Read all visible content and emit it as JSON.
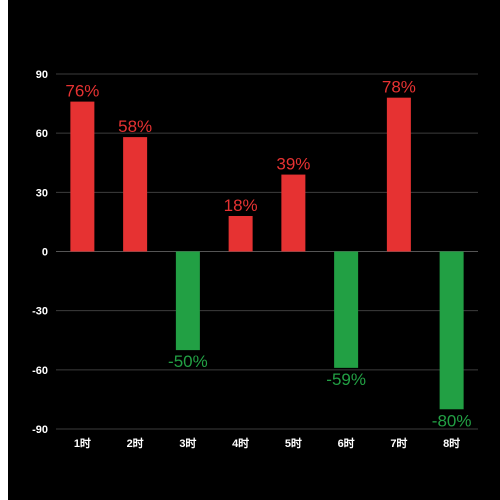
{
  "chart_data": {
    "type": "bar",
    "categories": [
      "1时",
      "2时",
      "3时",
      "4时",
      "5时",
      "6时",
      "7时",
      "8时"
    ],
    "values": [
      76,
      58,
      -50,
      18,
      39,
      -59,
      78,
      -80
    ],
    "data_labels": [
      "76%",
      "58%",
      "-50%",
      "18%",
      "39%",
      "-59%",
      "78%",
      "-80%"
    ],
    "ylim": [
      -90,
      90
    ],
    "yticks": [
      90,
      60,
      30,
      0,
      -30,
      -60,
      -90
    ],
    "ytick_labels": [
      "90",
      "60",
      "30",
      "0",
      "-30",
      "-60",
      "-90"
    ],
    "grid": true,
    "legend": "none",
    "colors": {
      "positive": "#e63232",
      "negative": "#22a044",
      "background": "#000000",
      "grid": "#3d3d3d",
      "text": "#ffffff"
    }
  }
}
